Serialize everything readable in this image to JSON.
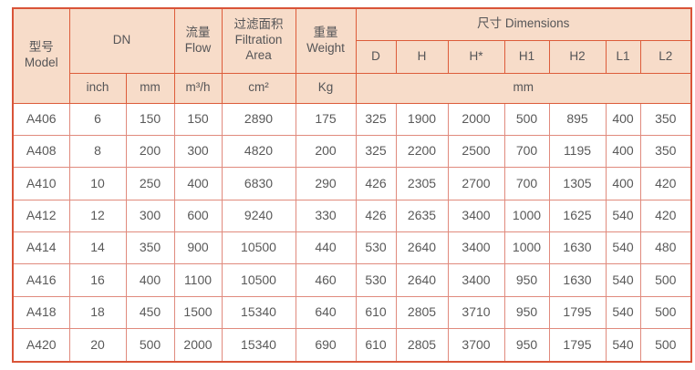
{
  "colors": {
    "header_bg": "#f7dcc9",
    "header_border": "#dd5c3a",
    "outer_border": "#d95438",
    "data_border": "#e08a7d",
    "text": "#58585a"
  },
  "table": {
    "header": {
      "model": {
        "zh": "型号",
        "en": "Model"
      },
      "dn": "DN",
      "flow": {
        "zh": "流量",
        "en": "Flow"
      },
      "filtration": {
        "zh": "过滤面积",
        "en": "Filtration Area"
      },
      "weight": {
        "zh": "重量",
        "en": "Weight"
      },
      "dimensions": {
        "zh": "尺寸",
        "en": "Dimensions"
      },
      "dim_cols": [
        "D",
        "H",
        "H*",
        "H1",
        "H2",
        "L1",
        "L2"
      ],
      "units": {
        "inch": "inch",
        "mm": "mm",
        "flow": "m³/h",
        "area": "cm²",
        "weight": "Kg",
        "dims": "mm"
      }
    }
  },
  "chart_data": {
    "type": "table",
    "columns": [
      "型号 Model",
      "DN inch",
      "DN mm",
      "流量 Flow (m³/h)",
      "过滤面积 Filtration Area (cm²)",
      "重量 Weight (Kg)",
      "D (mm)",
      "H (mm)",
      "H* (mm)",
      "H1 (mm)",
      "H2 (mm)",
      "L1 (mm)",
      "L2 (mm)"
    ],
    "rows": [
      [
        "A406",
        "6",
        "150",
        "150",
        "2890",
        "175",
        "325",
        "1900",
        "2000",
        "500",
        "895",
        "400",
        "350"
      ],
      [
        "A408",
        "8",
        "200",
        "300",
        "4820",
        "200",
        "325",
        "2200",
        "2500",
        "700",
        "1195",
        "400",
        "350"
      ],
      [
        "A410",
        "10",
        "250",
        "400",
        "6830",
        "290",
        "426",
        "2305",
        "2700",
        "700",
        "1305",
        "400",
        "420"
      ],
      [
        "A412",
        "12",
        "300",
        "600",
        "9240",
        "330",
        "426",
        "2635",
        "3400",
        "1000",
        "1625",
        "540",
        "420"
      ],
      [
        "A414",
        "14",
        "350",
        "900",
        "10500",
        "440",
        "530",
        "2640",
        "3400",
        "1000",
        "1630",
        "540",
        "480"
      ],
      [
        "A416",
        "16",
        "400",
        "1100",
        "10500",
        "460",
        "530",
        "2640",
        "3400",
        "950",
        "1630",
        "540",
        "500"
      ],
      [
        "A418",
        "18",
        "450",
        "1500",
        "15340",
        "640",
        "610",
        "2805",
        "3710",
        "950",
        "1795",
        "540",
        "500"
      ],
      [
        "A420",
        "20",
        "500",
        "2000",
        "15340",
        "690",
        "610",
        "2805",
        "3700",
        "950",
        "1795",
        "540",
        "500"
      ]
    ]
  }
}
